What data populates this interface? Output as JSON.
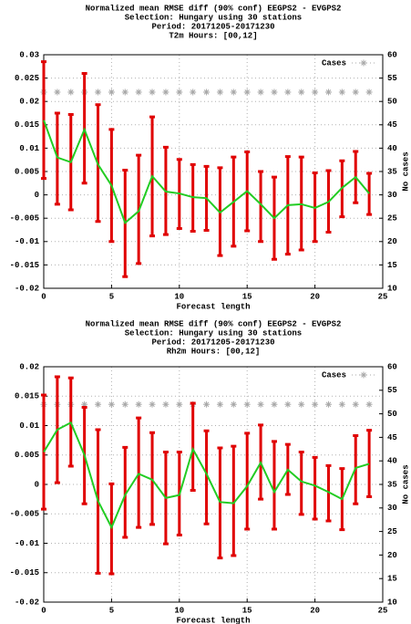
{
  "chart_data": [
    {
      "type": "errorbar-line",
      "title": [
        "Normalized mean RMSE diff (90% conf) EEGPS2 - EVGPS2",
        "Selection: Hungary using    30 stations",
        "Period: 20171205-20171230",
        "T2m   Hours: [00,12]"
      ],
      "xlabel": "Forecast length",
      "y2label": "No cases",
      "x": [
        0,
        1,
        2,
        3,
        4,
        5,
        6,
        7,
        8,
        9,
        10,
        11,
        12,
        13,
        14,
        15,
        16,
        17,
        18,
        19,
        20,
        21,
        22,
        23,
        24
      ],
      "mean": [
        0.016,
        0.008,
        0.007,
        0.014,
        0.0065,
        0.002,
        -0.006,
        -0.0035,
        0.004,
        0.0007,
        0.0003,
        -0.0005,
        -0.0007,
        -0.0038,
        -0.0015,
        0.0008,
        -0.002,
        -0.005,
        -0.0022,
        -0.002,
        -0.0028,
        -0.0015,
        0.0015,
        0.0038,
        0.0003
      ],
      "mean_color": "#22cc22",
      "errors": {
        "color": "#e00000",
        "lower": [
          0.0035,
          -0.002,
          -0.0032,
          0.0025,
          -0.0057,
          -0.01,
          -0.0175,
          -0.0147,
          -0.0088,
          -0.0085,
          -0.0072,
          -0.0078,
          -0.0076,
          -0.013,
          -0.011,
          -0.0077,
          -0.01,
          -0.0138,
          -0.0127,
          -0.0118,
          -0.01,
          -0.008,
          -0.0047,
          -0.0017,
          -0.0042
        ],
        "upper": [
          0.0285,
          0.0175,
          0.0172,
          0.026,
          0.0193,
          0.014,
          0.0053,
          0.0085,
          0.0167,
          0.0102,
          0.0076,
          0.0065,
          0.0061,
          0.0058,
          0.0081,
          0.0092,
          0.005,
          0.0038,
          0.0082,
          0.0081,
          0.0047,
          0.0052,
          0.0073,
          0.0093,
          0.0046
        ]
      },
      "series": [
        {
          "name": "Cases",
          "color": "#a8a8a8",
          "axis": "y2",
          "values": [
            52,
            52,
            52,
            52,
            52,
            52,
            52,
            52,
            52,
            52,
            52,
            52,
            52,
            52,
            52,
            52,
            52,
            52,
            52,
            52,
            52,
            52,
            52,
            52,
            52
          ]
        }
      ],
      "xlim": [
        0,
        25
      ],
      "xticks": [
        0,
        5,
        10,
        15,
        20,
        25
      ],
      "ylim": [
        -0.02,
        0.03
      ],
      "yticks": [
        -0.02,
        -0.015,
        -0.01,
        -0.005,
        0,
        0.005,
        0.01,
        0.015,
        0.02,
        0.025,
        0.03
      ],
      "y2lim": [
        10,
        60
      ],
      "y2ticks": [
        10,
        15,
        20,
        25,
        30,
        35,
        40,
        45,
        50,
        55,
        60
      ],
      "grid": true,
      "legend": "upper right"
    },
    {
      "type": "errorbar-line",
      "title": [
        "Normalized mean RMSE diff (90% conf) EEGPS2 - EVGPS2",
        "Selection: Hungary using    30 stations",
        "Period: 20171205-20171230",
        "Rh2m   Hours: [00,12]"
      ],
      "xlabel": "Forecast length",
      "y2label": "No cases",
      "x": [
        0,
        1,
        2,
        3,
        4,
        5,
        6,
        7,
        8,
        9,
        10,
        11,
        12,
        13,
        14,
        15,
        16,
        17,
        18,
        19,
        20,
        21,
        22,
        23,
        24
      ],
      "mean": [
        0.0055,
        0.0093,
        0.0105,
        0.005,
        -0.0028,
        -0.0073,
        -0.0018,
        0.0018,
        0.0008,
        -0.0023,
        -0.0018,
        0.006,
        0.0018,
        -0.003,
        -0.0032,
        -0.0003,
        0.0037,
        -0.0013,
        0.0025,
        0.0005,
        -0.0002,
        -0.0013,
        -0.0025,
        0.0028,
        0.0035
      ],
      "mean_color": "#22cc22",
      "errors": {
        "color": "#e00000",
        "lower": [
          -0.0042,
          0.0003,
          0.0031,
          -0.0033,
          -0.0151,
          -0.0152,
          -0.009,
          -0.0073,
          -0.0068,
          -0.0101,
          -0.0086,
          -0.001,
          -0.0067,
          -0.0125,
          -0.0121,
          -0.0076,
          -0.0025,
          -0.0076,
          -0.0017,
          -0.0051,
          -0.0059,
          -0.0062,
          -0.0077,
          -0.0033,
          -0.0021
        ],
        "upper": [
          0.0152,
          0.0183,
          0.0181,
          0.0131,
          0.0093,
          0.0001,
          0.0063,
          0.0113,
          0.0088,
          0.0055,
          0.0055,
          0.0138,
          0.0091,
          0.0062,
          0.0065,
          0.0087,
          0.0101,
          0.0073,
          0.0068,
          0.0055,
          0.0046,
          0.0032,
          0.0027,
          0.0083,
          0.0092
        ]
      },
      "series": [
        {
          "name": "Cases",
          "color": "#a8a8a8",
          "axis": "y2",
          "values": [
            52,
            52,
            52,
            52,
            52,
            52,
            52,
            52,
            52,
            52,
            52,
            52,
            52,
            52,
            52,
            52,
            52,
            52,
            52,
            52,
            52,
            52,
            52,
            52,
            52
          ]
        }
      ],
      "xlim": [
        0,
        25
      ],
      "xticks": [
        0,
        5,
        10,
        15,
        20,
        25
      ],
      "ylim": [
        -0.02,
        0.02
      ],
      "yticks": [
        -0.02,
        -0.015,
        -0.01,
        -0.005,
        0,
        0.005,
        0.01,
        0.015,
        0.02
      ],
      "y2lim": [
        10,
        60
      ],
      "y2ticks": [
        10,
        15,
        20,
        25,
        30,
        35,
        40,
        45,
        50,
        55,
        60
      ],
      "grid": true,
      "legend": "upper right"
    }
  ]
}
